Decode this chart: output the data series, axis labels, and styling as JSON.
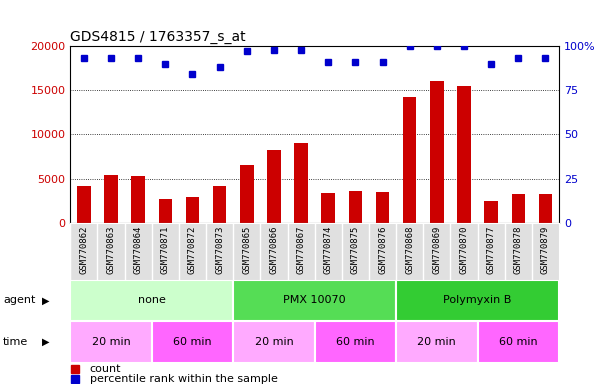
{
  "title": "GDS4815 / 1763357_s_at",
  "samples": [
    "GSM770862",
    "GSM770863",
    "GSM770864",
    "GSM770871",
    "GSM770872",
    "GSM770873",
    "GSM770865",
    "GSM770866",
    "GSM770867",
    "GSM770874",
    "GSM770875",
    "GSM770876",
    "GSM770868",
    "GSM770869",
    "GSM770870",
    "GSM770877",
    "GSM770878",
    "GSM770879"
  ],
  "counts": [
    4200,
    5400,
    5300,
    2700,
    2900,
    4200,
    6500,
    8200,
    9000,
    3400,
    3600,
    3500,
    14200,
    16000,
    15500,
    2500,
    3200,
    3300
  ],
  "percentiles": [
    93,
    93,
    93,
    90,
    84,
    88,
    97,
    98,
    98,
    91,
    91,
    91,
    100,
    100,
    100,
    90,
    93,
    93
  ],
  "bar_color": "#cc0000",
  "dot_color": "#0000cc",
  "ylim_left": [
    0,
    20000
  ],
  "ylim_right": [
    0,
    100
  ],
  "yticks_left": [
    0,
    5000,
    10000,
    15000,
    20000
  ],
  "yticks_right": [
    0,
    25,
    50,
    75,
    100
  ],
  "yticklabels_right": [
    "0",
    "25",
    "50",
    "75",
    "100%"
  ],
  "agent_groups": [
    {
      "label": "none",
      "start": 0,
      "end": 6,
      "color": "#ccffcc"
    },
    {
      "label": "PMX 10070",
      "start": 6,
      "end": 12,
      "color": "#55dd55"
    },
    {
      "label": "Polymyxin B",
      "start": 12,
      "end": 18,
      "color": "#33cc33"
    }
  ],
  "time_groups": [
    {
      "label": "20 min",
      "start": 0,
      "end": 3,
      "color": "#ffaaff"
    },
    {
      "label": "60 min",
      "start": 3,
      "end": 6,
      "color": "#ff66ff"
    },
    {
      "label": "20 min",
      "start": 6,
      "end": 9,
      "color": "#ffaaff"
    },
    {
      "label": "60 min",
      "start": 9,
      "end": 12,
      "color": "#ff66ff"
    },
    {
      "label": "20 min",
      "start": 12,
      "end": 15,
      "color": "#ffaaff"
    },
    {
      "label": "60 min",
      "start": 15,
      "end": 18,
      "color": "#ff66ff"
    }
  ],
  "legend_count_label": "count",
  "legend_pct_label": "percentile rank within the sample",
  "background_color": "#ffffff"
}
